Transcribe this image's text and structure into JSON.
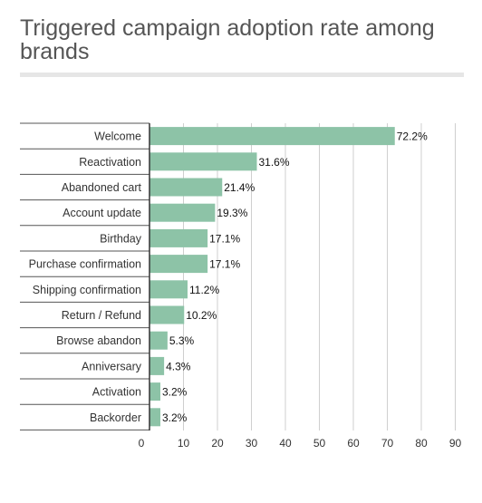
{
  "chart_data": {
    "type": "bar",
    "orientation": "horizontal",
    "title": "Triggered campaign adoption rate among brands",
    "xlabel": "",
    "ylabel": "",
    "xlim": [
      0,
      90
    ],
    "ticks": [
      "0",
      "10",
      "20",
      "30",
      "40",
      "50",
      "60",
      "70",
      "80",
      "90"
    ],
    "grid": true,
    "bar_color": "#8dc3a7",
    "categories": [
      "Welcome",
      "Reactivation",
      "Abandoned cart",
      "Account update",
      "Birthday",
      "Purchase confirmation",
      "Shipping confirmation",
      "Return / Refund",
      "Browse abandon",
      "Anniversary",
      "Activation",
      "Backorder"
    ],
    "values": [
      72.2,
      31.6,
      21.4,
      19.3,
      17.1,
      17.1,
      11.2,
      10.2,
      5.3,
      4.3,
      3.2,
      3.2
    ],
    "value_labels": [
      "72.2%",
      "31.6%",
      "21.4%",
      "19.3%",
      "17.1%",
      "17.1%",
      "11.2%",
      "10.2%",
      "5.3%",
      "4.3%",
      "3.2%",
      "3.2%"
    ]
  }
}
